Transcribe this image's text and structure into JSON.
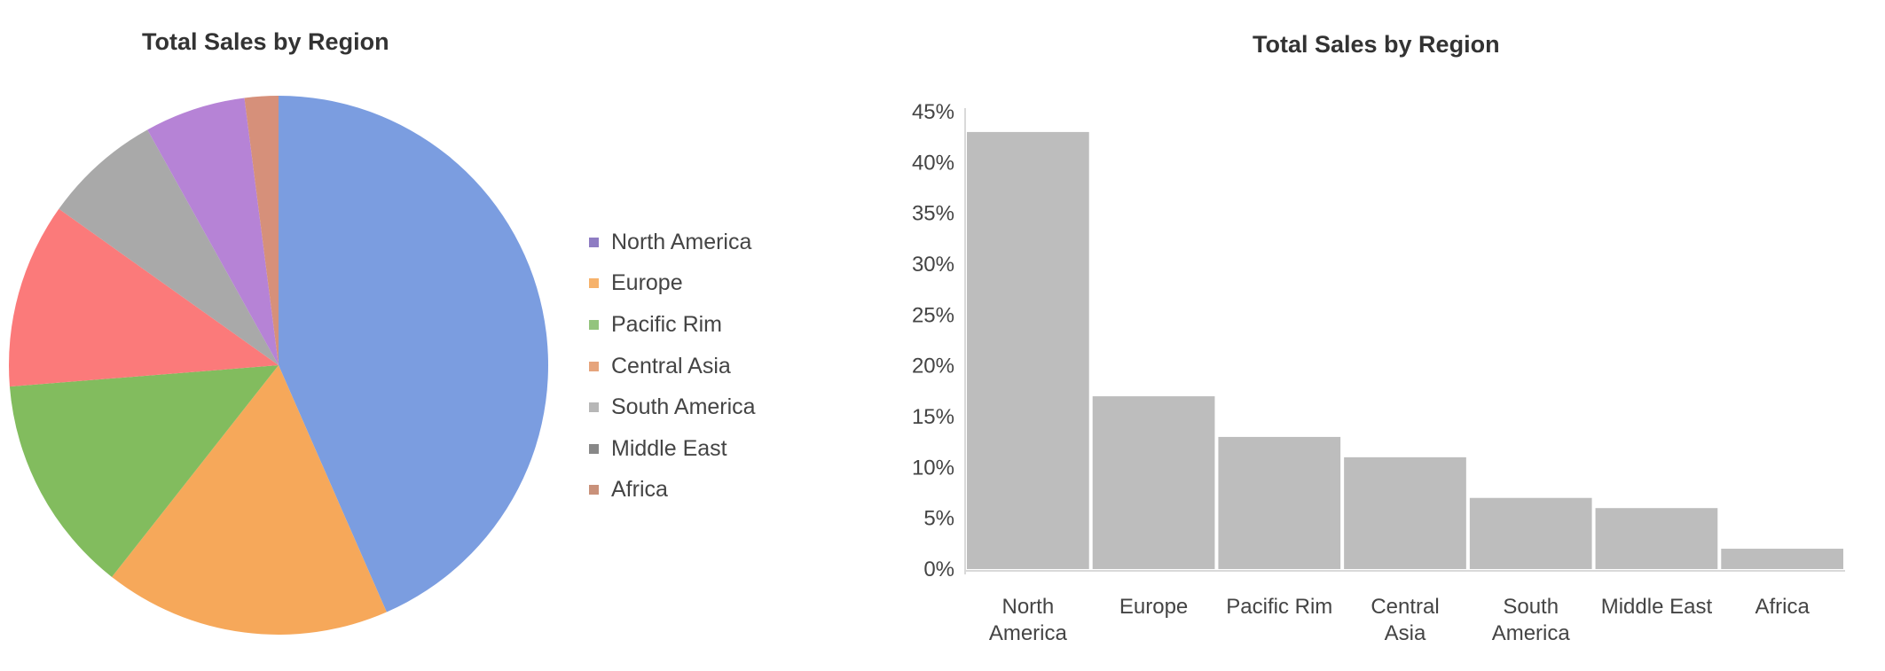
{
  "pie_title": "Total Sales by Region",
  "bar_title": "Total Sales by Region",
  "legend": [
    {
      "label": "North America",
      "color": "#8e7cc3"
    },
    {
      "label": "Europe",
      "color": "#f6b26b"
    },
    {
      "label": "Pacific Rim",
      "color": "#93c47d"
    },
    {
      "label": "Central Asia",
      "color": "#e6a47c"
    },
    {
      "label": "South America",
      "color": "#b7b7b7"
    },
    {
      "label": "Middle East",
      "color": "#888888"
    },
    {
      "label": "Africa",
      "color": "#c9917a"
    }
  ],
  "chart_data": [
    {
      "type": "pie",
      "title": "Total Sales by Region",
      "categories": [
        "North America",
        "Europe",
        "Pacific Rim",
        "Central Asia",
        "South America",
        "Middle East",
        "Africa"
      ],
      "values": [
        43,
        17,
        13,
        11,
        7,
        6,
        2
      ],
      "unit": "%",
      "slice_colors": [
        "#7b9de0",
        "#f6a85a",
        "#82bc5e",
        "#fb7a7a",
        "#a9a9a9",
        "#b683d6",
        "#d6907a"
      ],
      "start_angle_deg": 0,
      "direction": "clockwise",
      "legend_position": "right"
    },
    {
      "type": "bar",
      "title": "Total Sales by Region",
      "categories": [
        "North America",
        "Europe",
        "Pacific Rim",
        "Central Asia",
        "South America",
        "Middle East",
        "Africa"
      ],
      "values": [
        43,
        17,
        13,
        11,
        7,
        6,
        2
      ],
      "unit": "%",
      "ylim": [
        0,
        45
      ],
      "yticks": [
        0,
        5,
        10,
        15,
        20,
        25,
        30,
        35,
        40,
        45
      ],
      "ytick_labels": [
        "0%",
        "5%",
        "10%",
        "15%",
        "20%",
        "25%",
        "30%",
        "35%",
        "40%",
        "45%"
      ],
      "xlabel": "",
      "ylabel": "",
      "grid": false,
      "bar_color": "#bdbdbd",
      "axis_color": "#d9d9d9"
    }
  ]
}
